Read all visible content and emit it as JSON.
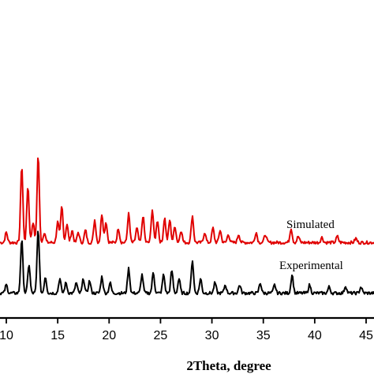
{
  "chart_data": {
    "type": "line",
    "xlabel": "2Theta, degree",
    "ylabel": "",
    "xlim": [
      9.5,
      45.5
    ],
    "xticks": [
      10,
      15,
      20,
      25,
      30,
      35,
      40,
      45
    ],
    "grid": false,
    "y_axis_shown": false,
    "series": [
      {
        "name": "Simulated",
        "color": "#e00000",
        "peaks": [
          [
            10.0,
            0.1
          ],
          [
            11.5,
            0.75
          ],
          [
            12.1,
            0.55
          ],
          [
            12.6,
            0.2
          ],
          [
            13.1,
            0.85
          ],
          [
            13.7,
            0.1
          ],
          [
            15.0,
            0.2
          ],
          [
            15.4,
            0.35
          ],
          [
            15.9,
            0.18
          ],
          [
            16.4,
            0.12
          ],
          [
            17.0,
            0.1
          ],
          [
            17.7,
            0.12
          ],
          [
            18.6,
            0.22
          ],
          [
            19.3,
            0.28
          ],
          [
            19.7,
            0.2
          ],
          [
            20.9,
            0.14
          ],
          [
            21.9,
            0.28
          ],
          [
            22.7,
            0.14
          ],
          [
            23.3,
            0.26
          ],
          [
            24.2,
            0.32
          ],
          [
            24.7,
            0.22
          ],
          [
            25.4,
            0.24
          ],
          [
            25.9,
            0.22
          ],
          [
            26.4,
            0.16
          ],
          [
            27.0,
            0.12
          ],
          [
            28.1,
            0.26
          ],
          [
            29.3,
            0.1
          ],
          [
            30.1,
            0.14
          ],
          [
            30.8,
            0.12
          ],
          [
            31.6,
            0.08
          ],
          [
            32.6,
            0.08
          ],
          [
            34.3,
            0.1
          ],
          [
            35.2,
            0.08
          ],
          [
            37.7,
            0.14
          ],
          [
            38.4,
            0.06
          ],
          [
            40.7,
            0.05
          ],
          [
            42.2,
            0.06
          ],
          [
            44.0,
            0.04
          ]
        ],
        "baseline": 0.02
      },
      {
        "name": "Experimental",
        "color": "#000000",
        "peaks": [
          [
            10.0,
            0.08
          ],
          [
            11.5,
            0.52
          ],
          [
            12.2,
            0.28
          ],
          [
            13.1,
            0.62
          ],
          [
            13.8,
            0.16
          ],
          [
            15.2,
            0.14
          ],
          [
            15.8,
            0.1
          ],
          [
            16.8,
            0.1
          ],
          [
            17.5,
            0.14
          ],
          [
            18.1,
            0.12
          ],
          [
            19.3,
            0.16
          ],
          [
            20.1,
            0.1
          ],
          [
            21.9,
            0.24
          ],
          [
            23.2,
            0.18
          ],
          [
            24.3,
            0.2
          ],
          [
            25.3,
            0.18
          ],
          [
            26.1,
            0.22
          ],
          [
            26.8,
            0.14
          ],
          [
            28.1,
            0.32
          ],
          [
            28.9,
            0.14
          ],
          [
            30.3,
            0.1
          ],
          [
            31.3,
            0.08
          ],
          [
            32.7,
            0.08
          ],
          [
            34.7,
            0.1
          ],
          [
            36.1,
            0.08
          ],
          [
            37.8,
            0.18
          ],
          [
            39.5,
            0.08
          ],
          [
            41.4,
            0.06
          ],
          [
            43.0,
            0.07
          ],
          [
            44.5,
            0.06
          ]
        ],
        "baseline": 0.05
      }
    ]
  }
}
